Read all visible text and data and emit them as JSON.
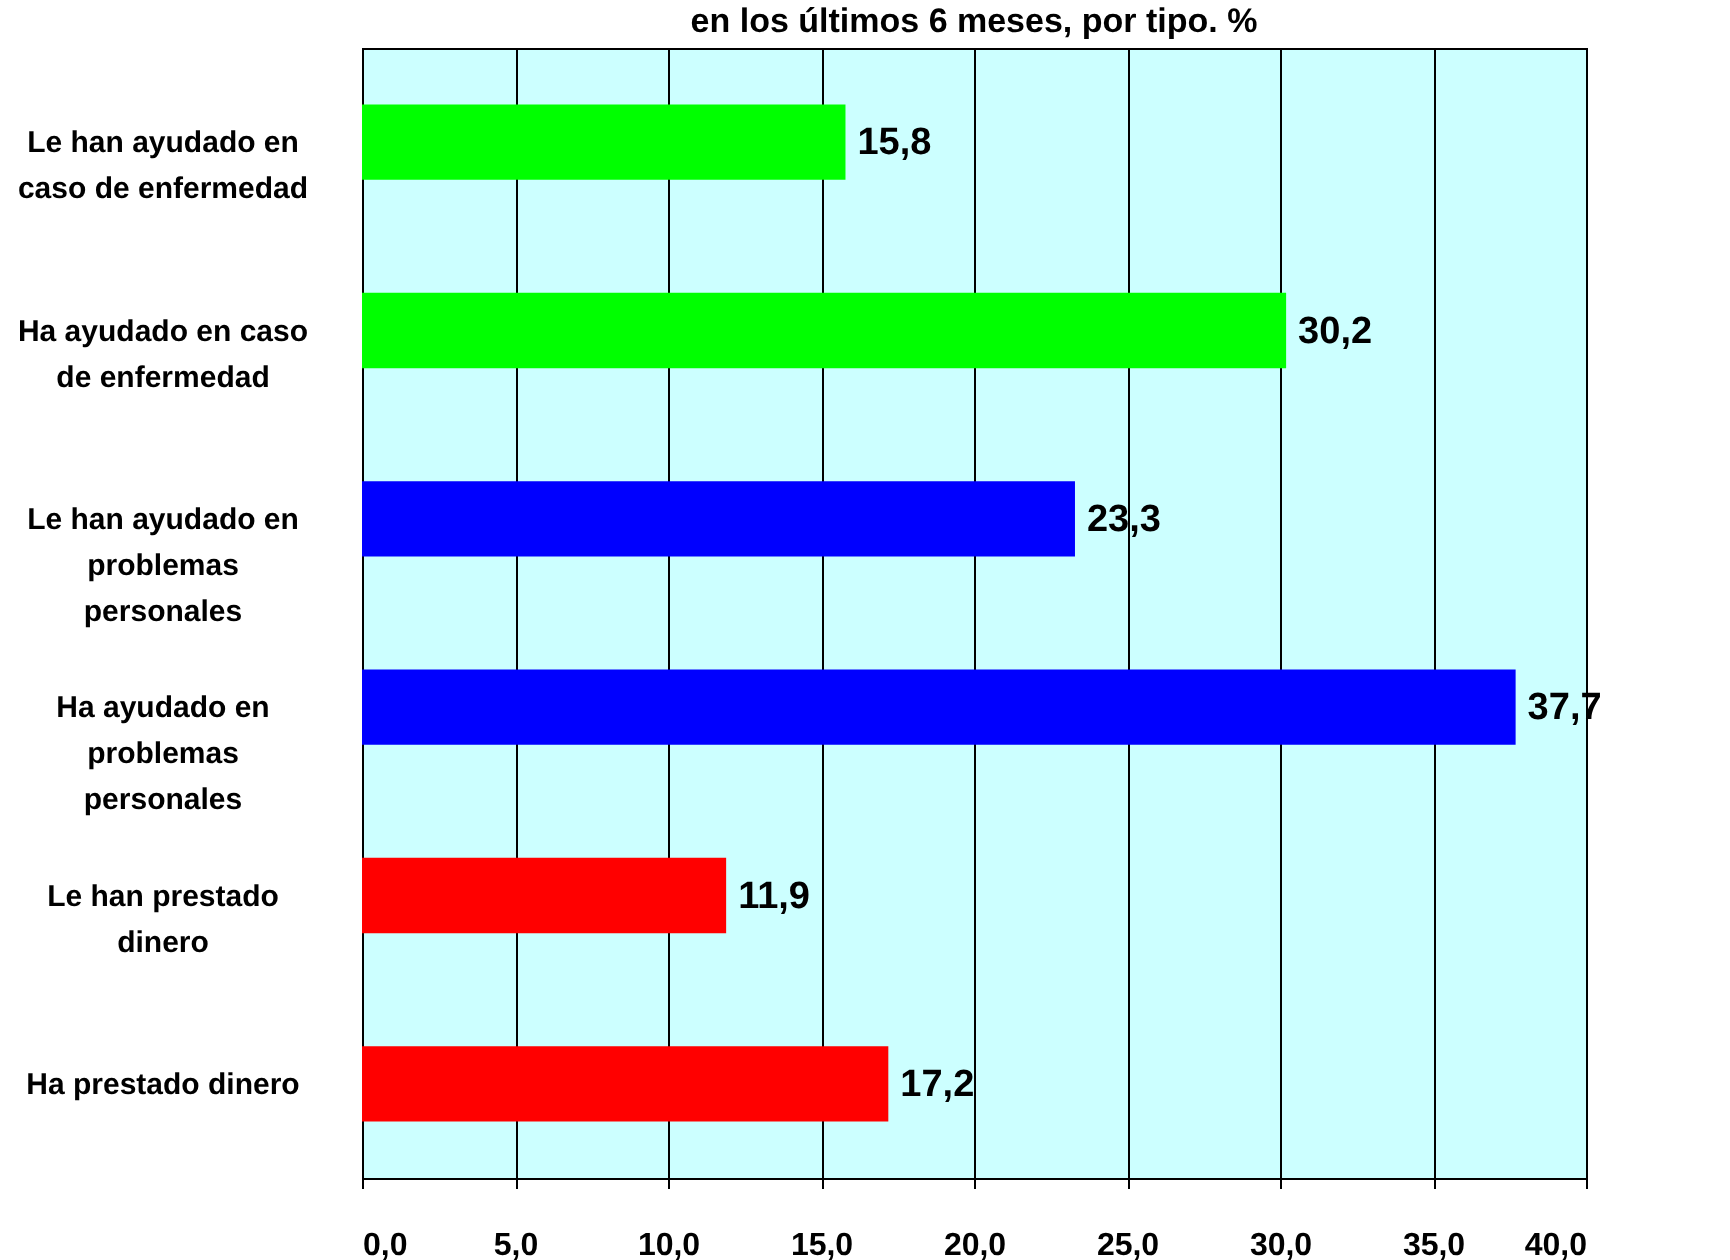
{
  "chart_data": {
    "type": "bar",
    "orientation": "horizontal",
    "title": "en los últimos 6 meses, por tipo. %",
    "categories": [
      "Le han ayudado en caso de enfermedad",
      "Ha ayudado en caso de enfermedad",
      "Le han ayudado en problemas personales",
      "Ha ayudado en problemas personales",
      "Le han prestado dinero",
      "Ha prestado dinero"
    ],
    "values": [
      15.8,
      30.2,
      23.3,
      37.7,
      11.9,
      17.2
    ],
    "colors": [
      "#00ff00",
      "#00ff00",
      "#0000ff",
      "#0000ff",
      "#ff0000",
      "#ff0000"
    ],
    "value_labels": [
      "15,8",
      "30,2",
      "23,3",
      "37,7",
      "11,9",
      "17,2"
    ],
    "xlim": [
      0,
      40
    ],
    "xticks": [
      {
        "value": 0,
        "label": "0,0"
      },
      {
        "value": 5,
        "label": "5,0"
      },
      {
        "value": 10,
        "label": "10,0"
      },
      {
        "value": 15,
        "label": "15,0"
      },
      {
        "value": 20,
        "label": "20,0"
      },
      {
        "value": 25,
        "label": "25,0"
      },
      {
        "value": 30,
        "label": "30,0"
      },
      {
        "value": 35,
        "label": "35,0"
      },
      {
        "value": 40,
        "label": "40,0"
      }
    ],
    "grid": "x"
  }
}
